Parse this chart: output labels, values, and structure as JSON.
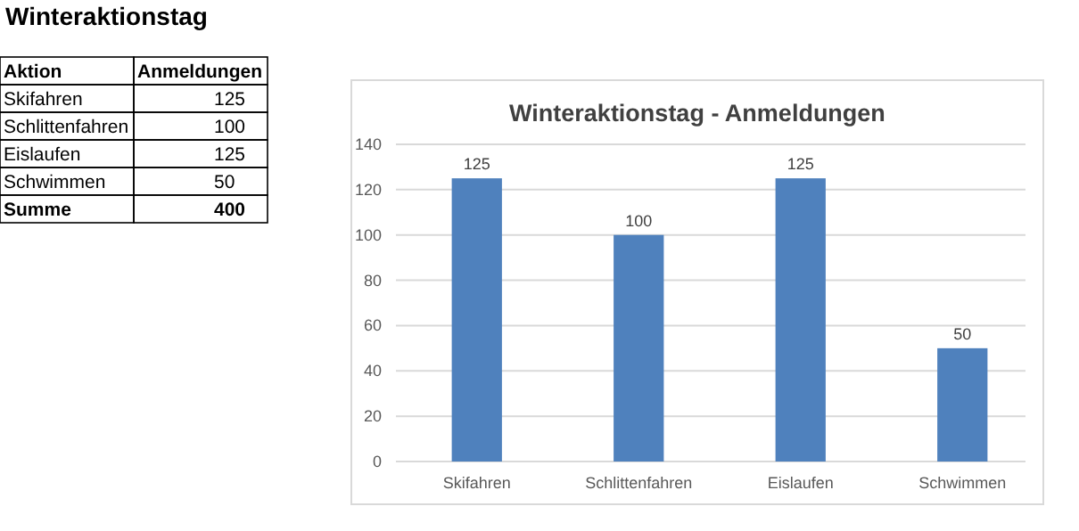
{
  "chart_data": [
    {
      "type": "other",
      "title": "Winteraktionstag",
      "xlabel": "Aktion",
      "ylabel": "Anmeldungen",
      "categories": [
        "Skifahren",
        "Schlittenfahren",
        "Eislaufen",
        "Schwimmen"
      ],
      "values": [
        125,
        100,
        125,
        50
      ],
      "data_labels": true,
      "annotations": [
        "Summe",
        "400"
      ]
    },
    {
      "type": "bar",
      "title": "Winteraktionstag - Anmeldungen",
      "categories": [
        "Skifahren",
        "Schlittenfahren",
        "Eislaufen",
        "Schwimmen"
      ],
      "values": [
        125,
        100,
        125,
        50
      ],
      "color": "#4f81bd",
      "ylim": [
        0,
        140
      ],
      "yticks": [
        0,
        20,
        40,
        60,
        80,
        100,
        120,
        140
      ],
      "grid": "y",
      "data_labels": true
    }
  ]
}
